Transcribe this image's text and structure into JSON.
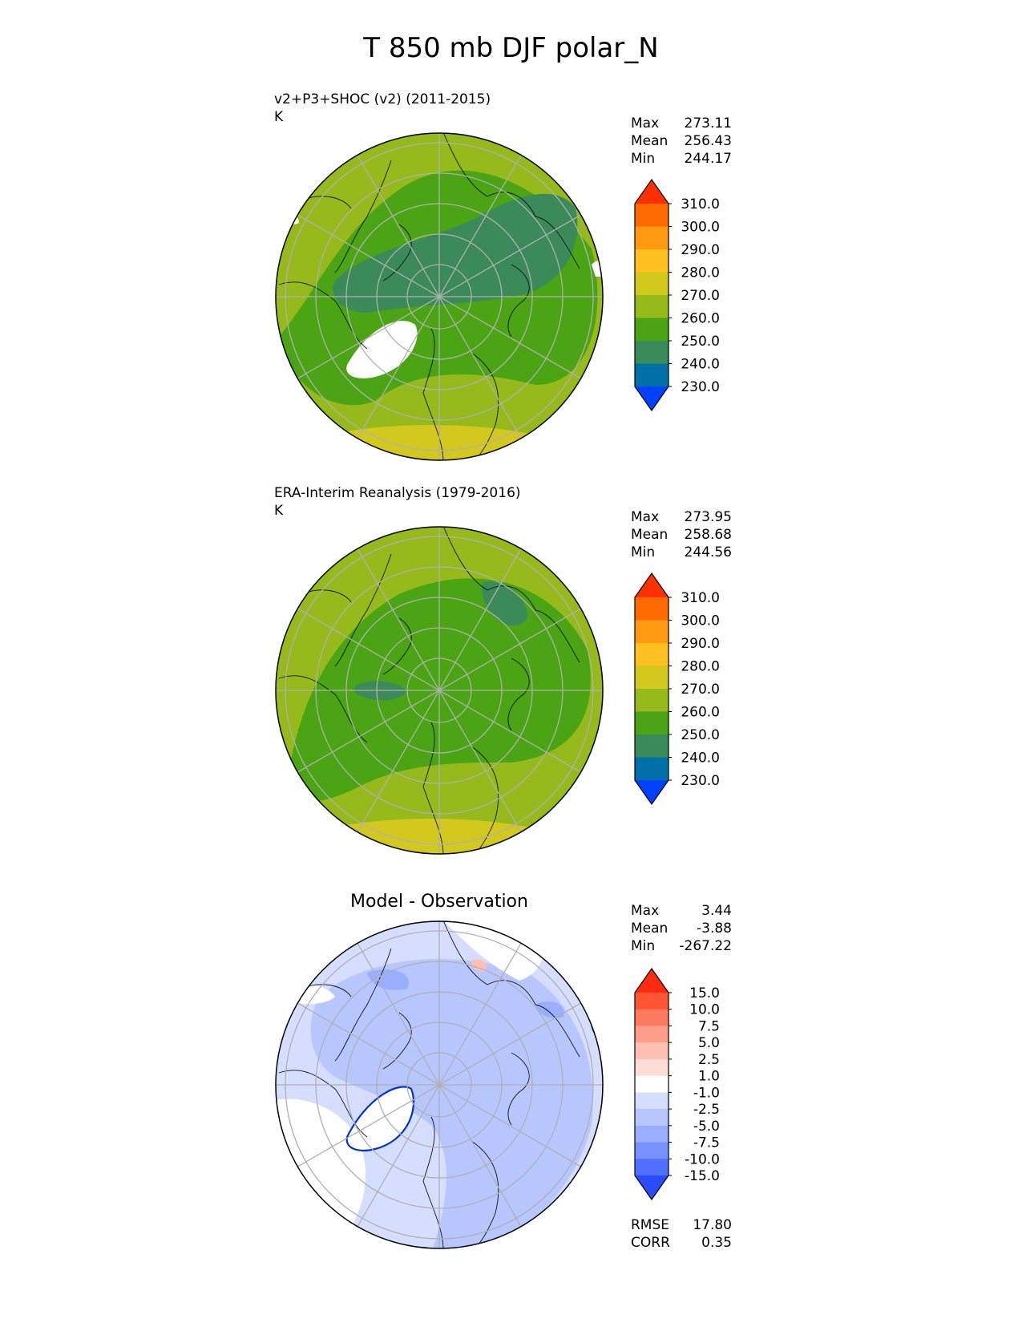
{
  "title": "T 850 mb DJF polar_N",
  "chart_data": [
    {
      "type": "heatmap",
      "projection": "north-polar-stereographic",
      "title": "v2+P3+SHOC (v2) (2011-2015)",
      "units": "K",
      "stats": [
        {
          "label": "Max",
          "value": "273.11"
        },
        {
          "label": "Mean",
          "value": "256.43"
        },
        {
          "label": "Min",
          "value": "244.17"
        }
      ],
      "colorbar": {
        "levels": [
          "310.0",
          "300.0",
          "290.0",
          "280.0",
          "270.0",
          "260.0",
          "250.0",
          "240.0",
          "230.0"
        ],
        "colors": [
          "#ff3000",
          "#ff6a00",
          "#ff9a10",
          "#ffc020",
          "#d2c81e",
          "#96b91c",
          "#4aa414",
          "#3a8a5a",
          "#0070a8",
          "#0040ff"
        ],
        "extend": "both"
      },
      "field_colors": {
        "outer": "#96b91c",
        "mid": "#4aa414",
        "cold": "#3a8a5a",
        "warm": "#d2c81e"
      }
    },
    {
      "type": "heatmap",
      "projection": "north-polar-stereographic",
      "title": "ERA-Interim Reanalysis (1979-2016)",
      "units": "K",
      "stats": [
        {
          "label": "Max",
          "value": "273.95"
        },
        {
          "label": "Mean",
          "value": "258.68"
        },
        {
          "label": "Min",
          "value": "244.56"
        }
      ],
      "colorbar": {
        "levels": [
          "310.0",
          "300.0",
          "290.0",
          "280.0",
          "270.0",
          "260.0",
          "250.0",
          "240.0",
          "230.0"
        ],
        "colors": [
          "#ff3000",
          "#ff6a00",
          "#ff9a10",
          "#ffc020",
          "#d2c81e",
          "#96b91c",
          "#4aa414",
          "#3a8a5a",
          "#0070a8",
          "#0040ff"
        ],
        "extend": "both"
      },
      "field_colors": {
        "outer": "#96b91c",
        "mid": "#4aa414",
        "cold": "#3a8a5a",
        "warm": "#d2c81e"
      }
    },
    {
      "type": "heatmap",
      "projection": "north-polar-stereographic",
      "title": "Model - Observation",
      "units": "",
      "stats": [
        {
          "label": "Max",
          "value": "3.44"
        },
        {
          "label": "Mean",
          "value": "-3.88"
        },
        {
          "label": "Min",
          "value": "-267.22"
        }
      ],
      "colorbar": {
        "levels": [
          "15.0",
          "10.0",
          "7.5",
          "5.0",
          "2.5",
          "1.0",
          "-1.0",
          "-2.5",
          "-5.0",
          "-7.5",
          "-10.0",
          "-15.0"
        ],
        "colors": [
          "#ff2a10",
          "#ff5535",
          "#ff7a60",
          "#ff9e8a",
          "#ffbfb2",
          "#ffdcd6",
          "#ffffff",
          "#d6deff",
          "#b8c6ff",
          "#9aaeff",
          "#7a92ff",
          "#5270ff",
          "#2a4cff"
        ],
        "extend": "both"
      },
      "metrics": [
        {
          "label": "RMSE",
          "value": "17.80"
        },
        {
          "label": "CORR",
          "value": "0.35"
        }
      ],
      "field_colors": {
        "base": "#d6deff",
        "neg": "#b8c6ff",
        "white": "#ffffff",
        "deep": "#9aaeff",
        "contour": "#0033cc"
      }
    }
  ]
}
